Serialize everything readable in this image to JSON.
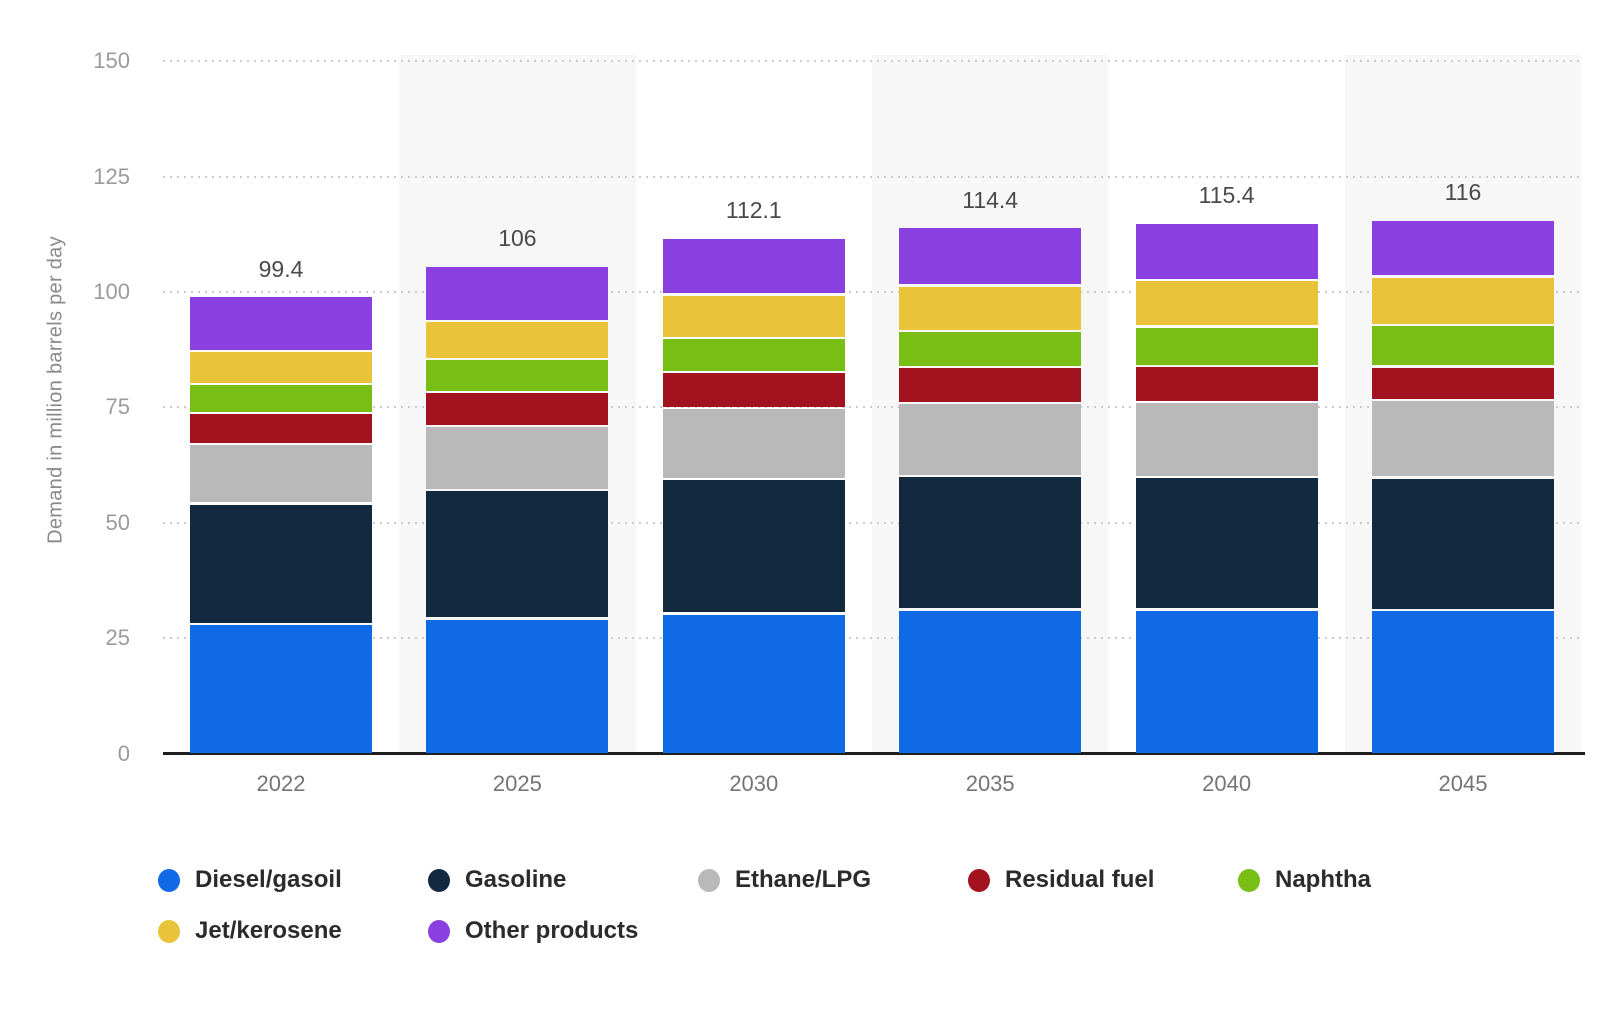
{
  "chart_data": {
    "type": "bar",
    "stacked": true,
    "title": "",
    "xlabel": "",
    "ylabel": "Demand in million barrels per day",
    "ylim": [
      0,
      150
    ],
    "y_ticks": [
      0,
      25,
      50,
      75,
      100,
      125,
      150
    ],
    "grid": "horizontal dotted lines at every 25 units, solid dark baseline at 0",
    "plot_bands": "light gray vertical bands behind the 2025, 2035 and 2045 columns",
    "legend_position": "bottom, two rows, round color markers",
    "categories": [
      "2022",
      "2025",
      "2030",
      "2035",
      "2040",
      "2045"
    ],
    "series": [
      {
        "name": "Diesel/gasoil",
        "color": "#106ae5",
        "values": [
          28.3,
          29.5,
          30.6,
          31.5,
          31.5,
          31.4
        ]
      },
      {
        "name": "Gasoline",
        "color": "#13293f",
        "values": [
          26.2,
          27.9,
          29.2,
          28.9,
          28.7,
          28.7
        ]
      },
      {
        "name": "Ethane/LPG",
        "color": "#b9b9b9",
        "values": [
          12.8,
          13.9,
          15.3,
          15.8,
          16.2,
          16.8
        ]
      },
      {
        "name": "Residual fuel",
        "color": "#a2121f",
        "values": [
          6.8,
          7.3,
          7.8,
          7.8,
          7.8,
          7.2
        ]
      },
      {
        "name": "Naphtha",
        "color": "#78be14",
        "values": [
          6.3,
          7.2,
          7.4,
          7.8,
          8.6,
          9.0
        ]
      },
      {
        "name": "Jet/kerosene",
        "color": "#e9c43a",
        "values": [
          7.1,
          8.2,
          9.4,
          9.9,
          10.1,
          10.6
        ]
      },
      {
        "name": "Other products",
        "color": "#8a3fe0",
        "values": [
          11.9,
          12.0,
          12.4,
          12.7,
          12.5,
          12.3
        ]
      }
    ],
    "totals": [
      "99.4",
      "106",
      "112.1",
      "114.4",
      "115.4",
      "116"
    ],
    "total_unit": "million barrels per day"
  },
  "colors": {
    "background": "#ffffff",
    "plot_band": "#f7f7f7",
    "grid_dots": "#cbcbcb",
    "axis_line": "#1f1f1f",
    "y_tick_text": "#9b9b9b",
    "y_title_text": "#8a8a8a",
    "x_label_text": "#757575",
    "total_text": "#4a4a4a",
    "legend_text": "#2b2b2b"
  }
}
